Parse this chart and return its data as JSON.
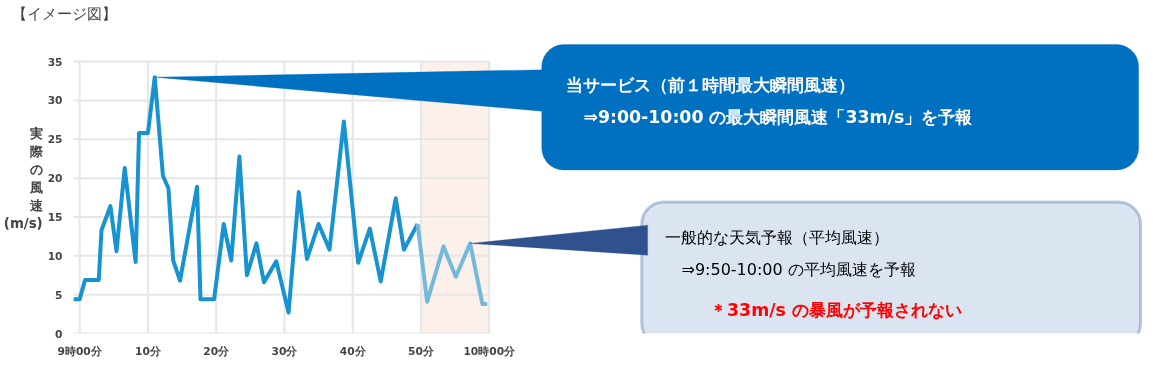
{
  "chart_data": {
    "type": "line",
    "title": "【イメージ図】",
    "ylabel": "実際の風速(m/s)",
    "xlim": [
      -0.9,
      60
    ],
    "ylim": [
      0,
      35
    ],
    "xticks": [
      {
        "value": 0,
        "label": "9時00分"
      },
      {
        "value": 10,
        "label": "10分"
      },
      {
        "value": 20,
        "label": "20分"
      },
      {
        "value": 30,
        "label": "30分"
      },
      {
        "value": 40,
        "label": "40分"
      },
      {
        "value": 50,
        "label": "50分"
      },
      {
        "value": 60,
        "label": "10時00分"
      }
    ],
    "yticks": [
      0,
      5,
      10,
      15,
      20,
      25,
      30,
      35
    ],
    "grid": true,
    "marker": "none",
    "line_style": "solid",
    "bands": [
      {
        "axis": "x",
        "from": 50,
        "to": 60,
        "color": "#fbf1ea"
      }
    ],
    "series": [
      {
        "color": "#1793d1",
        "x": [
          -0.9,
          0,
          0.8,
          2.8,
          3.2,
          4.5,
          5.4,
          6.6,
          8.2,
          8.7,
          10,
          11,
          12.2,
          13,
          13.7,
          14.7,
          17.2,
          17.7,
          19.7,
          21.1,
          22.2,
          23.4,
          24.5,
          25.9,
          27.0,
          28.8,
          30.6,
          32.1,
          33.3,
          35.0,
          36.6,
          38.7,
          40.8,
          42.5,
          44.1,
          46.3,
          47.5,
          49.5
        ],
        "values": [
          4.4,
          4.4,
          6.9,
          6.9,
          13.3,
          16.4,
          10.6,
          21.3,
          9.2,
          25.8,
          25.8,
          33,
          20.3,
          18.7,
          9.4,
          6.8,
          18.9,
          4.4,
          4.4,
          14.1,
          9.4,
          22.8,
          7.5,
          11.6,
          6.6,
          9.3,
          2.7,
          18.2,
          9.6,
          14.1,
          10.8,
          27.3,
          9.1,
          13.5,
          6.7,
          17.4,
          10.8,
          14.1
        ]
      },
      {
        "color": "#74b9da",
        "x": [
          49.5,
          50.9,
          53.3,
          55.1,
          57.2,
          59.0,
          59.7
        ],
        "values": [
          14.1,
          4.1,
          11.2,
          7.3,
          11.6,
          3.8,
          3.8
        ]
      }
    ],
    "annotations": [
      {
        "text": "当サービス（前１時間最大瞬間風速）\n　⇒9:00-10:00 の最大瞬間風速「33m/s」を予報",
        "x": 11,
        "y": 33
      },
      {
        "text": "一般的な天気予報（平均風速）\n　⇒9:50-10:00 の平均風速を予報",
        "x": 57.2,
        "y": 11.6
      },
      "＊33m/s の暴風が予報されない"
    ]
  }
}
